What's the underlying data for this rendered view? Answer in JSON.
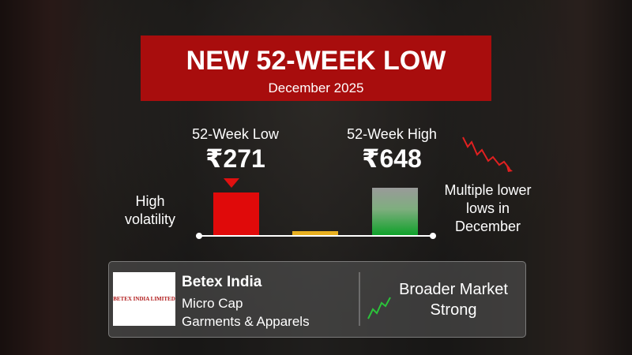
{
  "header": {
    "title": "NEW 52-WEEK LOW",
    "subtitle": "December 2025"
  },
  "stats": [
    {
      "label": "52-Week Low",
      "value": "₹271"
    },
    {
      "label": "52-Week High",
      "value": "₹648"
    }
  ],
  "notes": {
    "left": "High volatility",
    "right": "Multiple lower lows in December"
  },
  "company": {
    "logo_text": "BETEX INDIA LIMITED",
    "name": "Betex India",
    "cap": "Micro Cap",
    "sector": "Garments & Apparels"
  },
  "market": "Broader Market Strong"
}
